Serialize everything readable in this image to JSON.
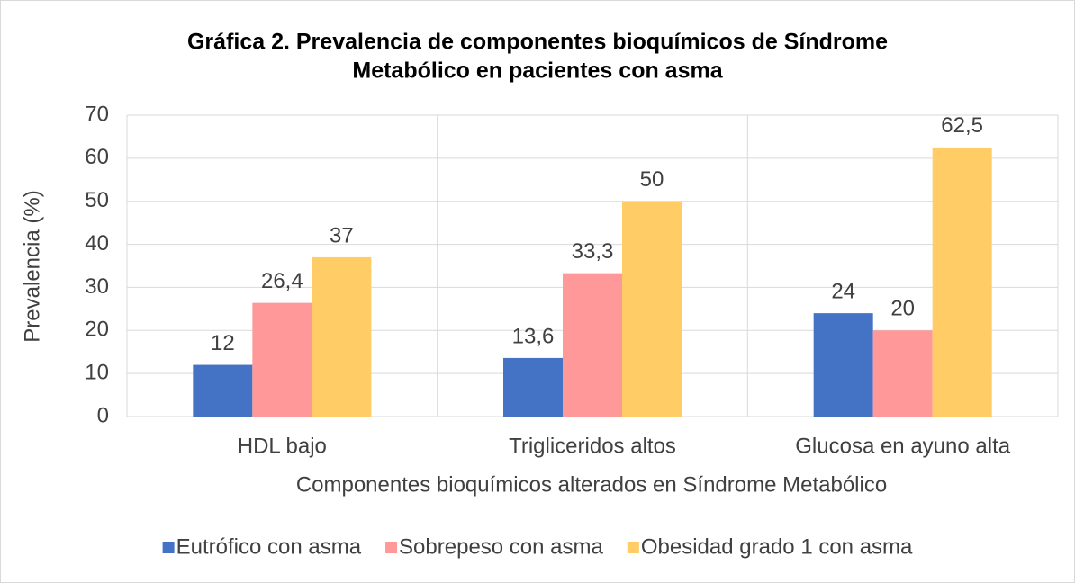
{
  "chart_data": {
    "type": "bar",
    "title": [
      "Gráfica 2. Prevalencia de componentes bioquímicos de Síndrome",
      "Metabólico en pacientes con asma"
    ],
    "xlabel": "Componentes bioquímicos alterados en Síndrome Metabólico",
    "ylabel": "Prevalencia (%)",
    "categories": [
      "HDL bajo",
      "Trigliceridos altos",
      "Glucosa en ayuno  alta"
    ],
    "series": [
      {
        "name": "Eutrófico con asma",
        "color": "#4472c4",
        "values": [
          12,
          13.6,
          24
        ],
        "value_labels": [
          "12",
          "13,6",
          "24"
        ]
      },
      {
        "name": "Sobrepeso con asma",
        "color": "#ff9999",
        "values": [
          26.4,
          33.3,
          20
        ],
        "value_labels": [
          "26,4",
          "33,3",
          "20"
        ]
      },
      {
        "name": "Obesidad grado 1 con asma",
        "color": "#ffcc66",
        "values": [
          37,
          50,
          62.5
        ],
        "value_labels": [
          "37",
          "50",
          "62,5"
        ]
      }
    ],
    "ylim": [
      0,
      70
    ],
    "yticks": [
      0,
      10,
      20,
      30,
      40,
      50,
      60,
      70
    ],
    "grid": true,
    "legend": "bottom"
  }
}
